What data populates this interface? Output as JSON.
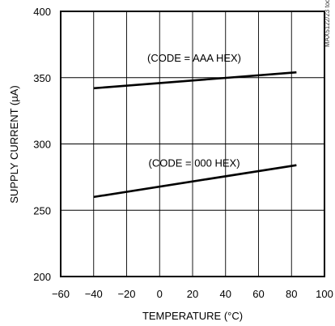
{
  "chart_data": {
    "type": "line",
    "title": "",
    "xlabel": "TEMPERATURE (°C)",
    "ylabel": "SUPPLY CURRENT (µA)",
    "xlim": [
      -60,
      100
    ],
    "ylim": [
      200,
      400
    ],
    "x_ticks": [
      -60,
      -40,
      -20,
      0,
      20,
      40,
      60,
      80,
      100
    ],
    "y_ticks": [
      200,
      250,
      300,
      350,
      400
    ],
    "grid": true,
    "series": [
      {
        "x": [
          -40,
          83
        ],
        "y": [
          342,
          354
        ]
      },
      {
        "x": [
          -40,
          83
        ],
        "y": [
          260,
          284
        ]
      }
    ],
    "annotations": [
      {
        "text": "(CODE = AAA HEX)",
        "x": 21,
        "y": 362
      },
      {
        "text": "(CODE = 000 HEX)",
        "x": 21,
        "y": 283
      }
    ],
    "side_label": "MAX5122/23 toc16",
    "colors": {
      "line": "#000000",
      "grid": "#000000",
      "background": "#ffffff"
    }
  }
}
